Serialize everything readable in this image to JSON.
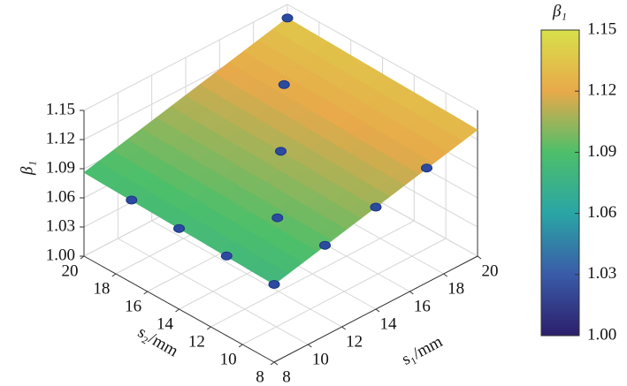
{
  "chart_data": {
    "type": "surface3d",
    "xlabel": "s₁/mm",
    "ylabel": "s₂/mm",
    "zlabel": "β₁",
    "colorbar_label": "β₁",
    "xlim": [
      8,
      20
    ],
    "ylim": [
      8,
      20
    ],
    "zlim": [
      1.0,
      1.15
    ],
    "xticks": [
      8,
      10,
      12,
      14,
      16,
      18,
      20
    ],
    "yticks": [
      8,
      10,
      12,
      14,
      16,
      18,
      20
    ],
    "zticks": [
      {
        "value": 1.0,
        "label": "1.00"
      },
      1.03,
      1.06,
      1.09,
      1.12,
      1.15
    ],
    "surface": {
      "x": [
        8,
        20
      ],
      "y": [
        8,
        20
      ],
      "z": [
        [
          1.08,
          1.086
        ],
        [
          1.13,
          1.136
        ]
      ]
    },
    "points": {
      "x": [
        8,
        8,
        8,
        8,
        11,
        14,
        17,
        11,
        14,
        17,
        20
      ],
      "y": [
        8,
        11,
        14,
        17,
        8,
        8,
        8,
        11,
        14,
        17,
        20
      ],
      "z": [
        1.08,
        1.082,
        1.083,
        1.085,
        1.093,
        1.105,
        1.118,
        1.094,
        1.108,
        1.122,
        1.136
      ],
      "color": "#2b4aa0"
    },
    "colormap": [
      "#2c1f6b",
      "#3a5ba8",
      "#2aa5a5",
      "#4dbf6a",
      "#e8a94a",
      "#d8e04a"
    ],
    "clim": [
      1.0,
      1.15
    ],
    "cticks": [
      {
        "value": 1.0,
        "label": "1.00"
      },
      1.03,
      1.06,
      1.09,
      1.12,
      1.15
    ],
    "grid": true
  }
}
